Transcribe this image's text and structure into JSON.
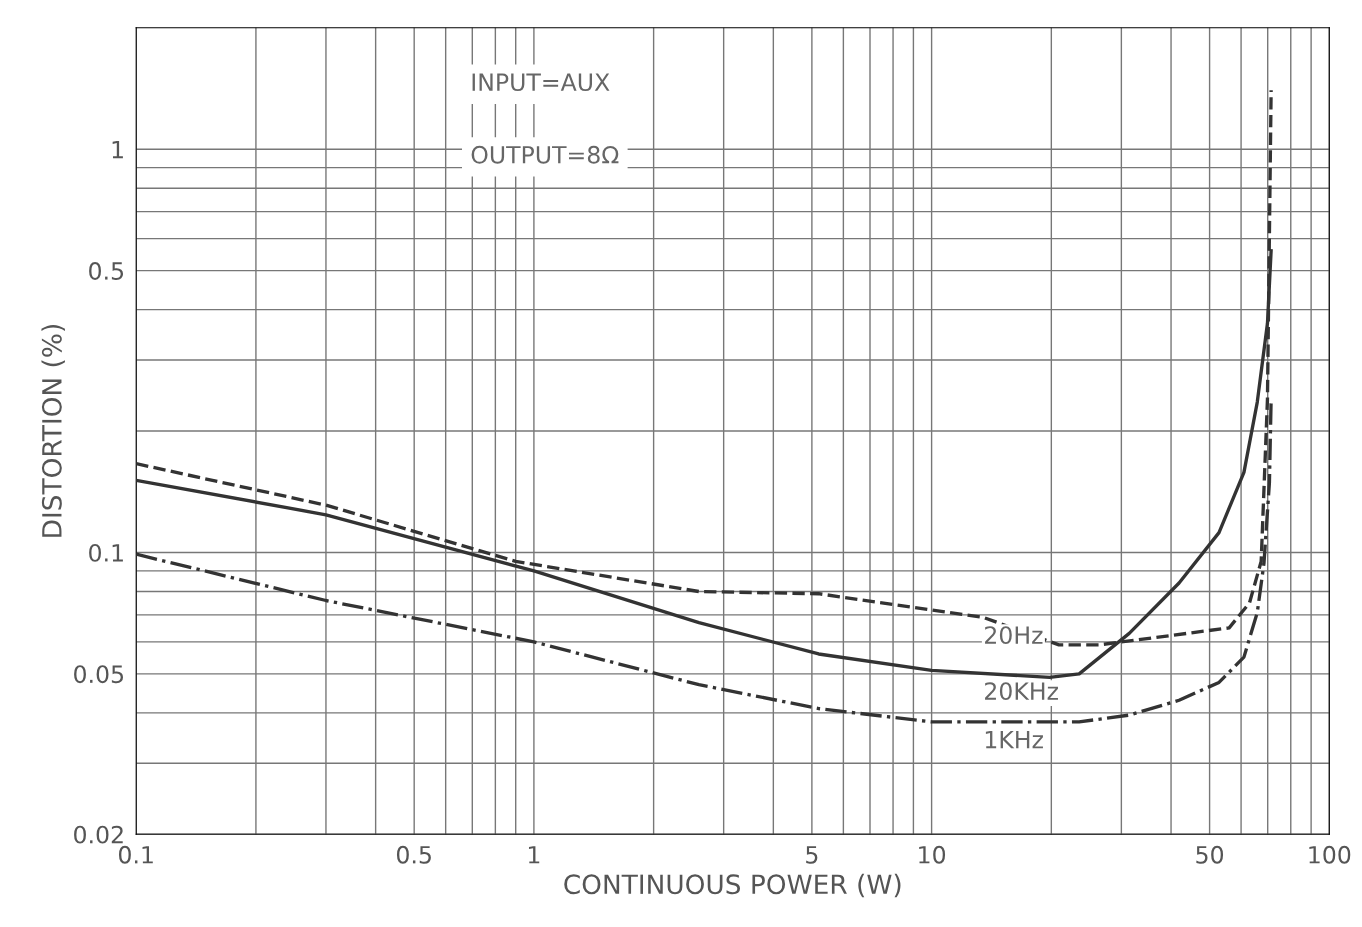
{
  "chart_data": {
    "type": "line",
    "xlabel": "CONTINUOUS POWER (W)",
    "ylabel": "DISTORTION (%)",
    "log": "xy",
    "grid": true,
    "marker": "none",
    "xlim": [
      0.1,
      100
    ],
    "ylim": [
      0.02,
      2
    ],
    "xticks": [
      0.1,
      {
        "value": 0.2,
        "label": null
      },
      {
        "value": 0.3,
        "label": null
      },
      {
        "value": 0.4,
        "label": null
      },
      0.5,
      {
        "value": 0.6,
        "label": null
      },
      {
        "value": 0.7,
        "label": null
      },
      {
        "value": 0.8,
        "label": null
      },
      {
        "value": 0.9,
        "label": null
      },
      1,
      {
        "value": 2,
        "label": null
      },
      {
        "value": 3,
        "label": null
      },
      {
        "value": 4,
        "label": null
      },
      5,
      {
        "value": 6,
        "label": null
      },
      {
        "value": 7,
        "label": null
      },
      {
        "value": 8,
        "label": null
      },
      {
        "value": 9,
        "label": null
      },
      10,
      {
        "value": 20,
        "label": null
      },
      {
        "value": 30,
        "label": null
      },
      {
        "value": 40,
        "label": null
      },
      50,
      {
        "value": 60,
        "label": null
      },
      {
        "value": 70,
        "label": null
      },
      {
        "value": 80,
        "label": null
      },
      {
        "value": 90,
        "label": null
      },
      100
    ],
    "yticks": [
      0.02,
      {
        "value": 0.03,
        "label": null
      },
      {
        "value": 0.04,
        "label": null
      },
      0.05,
      {
        "value": 0.06,
        "label": null
      },
      {
        "value": 0.07,
        "label": null
      },
      {
        "value": 0.08,
        "label": null
      },
      {
        "value": 0.09,
        "label": null
      },
      0.1,
      {
        "value": 0.2,
        "label": null
      },
      {
        "value": 0.3,
        "label": null
      },
      {
        "value": 0.4,
        "label": null
      },
      0.5,
      {
        "value": 0.6,
        "label": null
      },
      {
        "value": 0.7,
        "label": null
      },
      {
        "value": 0.8,
        "label": null
      },
      {
        "value": 0.9,
        "label": null
      },
      1
    ],
    "series": [
      {
        "name": "20Hz",
        "color": "#333333",
        "line_style": "dashed",
        "x": [
          0.1,
          0.3,
          0.9,
          2.6,
          5.2,
          10,
          13.5,
          20.9,
          26.4,
          56,
          63,
          67.4,
          69.9,
          71.4
        ],
        "values": [
          0.166,
          0.131,
          0.095,
          0.08,
          0.079,
          0.072,
          0.069,
          0.059,
          0.059,
          0.065,
          0.075,
          0.095,
          0.24,
          1.4
        ]
      },
      {
        "name": "20KHz",
        "color": "#333333",
        "line_style": "solid",
        "x": [
          0.1,
          0.3,
          1,
          2.6,
          5.2,
          10,
          19.8,
          23.5,
          31.4,
          41.9,
          52.8,
          61,
          65.9,
          69.9,
          71.4
        ],
        "values": [
          0.151,
          0.124,
          0.09,
          0.067,
          0.056,
          0.051,
          0.049,
          0.05,
          0.063,
          0.084,
          0.112,
          0.158,
          0.236,
          0.37,
          0.56
        ]
      },
      {
        "name": "1KHz",
        "color": "#333333",
        "line_style": "dashdot",
        "x": [
          0.1,
          0.3,
          1,
          2.6,
          5.2,
          10,
          23.5,
          31.4,
          41.9,
          52.8,
          61,
          65.9,
          68.5,
          70.7,
          71.4
        ],
        "values": [
          0.099,
          0.076,
          0.06,
          0.047,
          0.041,
          0.038,
          0.038,
          0.0395,
          0.043,
          0.0476,
          0.055,
          0.071,
          0.094,
          0.149,
          0.24
        ]
      }
    ],
    "annotations": [
      "INPUT=AUX",
      "OUTPUT=8Ω"
    ]
  }
}
